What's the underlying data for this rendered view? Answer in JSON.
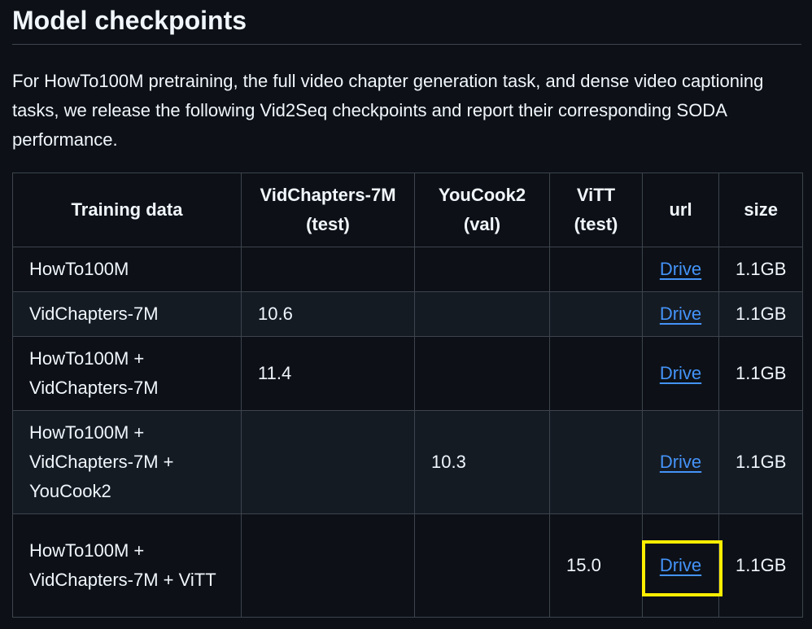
{
  "heading": "Model checkpoints",
  "intro": "For HowTo100M pretraining, the full video chapter generation task, and dense video captioning tasks, we release the following Vid2Seq checkpoints and report their corresponding SODA performance.",
  "table": {
    "headers": [
      "Training data",
      "VidChapters-7M (test)",
      "YouCook2 (val)",
      "ViTT (test)",
      "url",
      "size"
    ],
    "rows": [
      {
        "training": "HowTo100M",
        "vidchapters": "",
        "youcook2": "",
        "vitt": "",
        "url": "Drive",
        "size": "1.1GB"
      },
      {
        "training": "VidChapters-7M",
        "vidchapters": "10.6",
        "youcook2": "",
        "vitt": "",
        "url": "Drive",
        "size": "1.1GB"
      },
      {
        "training": "HowTo100M + VidChapters-7M",
        "vidchapters": "11.4",
        "youcook2": "",
        "vitt": "",
        "url": "Drive",
        "size": "1.1GB"
      },
      {
        "training": "HowTo100M + VidChapters-7M + YouCook2",
        "vidchapters": "",
        "youcook2": "10.3",
        "vitt": "",
        "url": "Drive",
        "size": "1.1GB"
      },
      {
        "training": "HowTo100M + VidChapters-7M + ViTT",
        "vidchapters": "",
        "youcook2": "",
        "vitt": "15.0",
        "url": "Drive",
        "size": "1.1GB"
      }
    ]
  },
  "colors": {
    "background": "#0d1117",
    "link": "#4493f8",
    "highlight": "#ffee00"
  }
}
